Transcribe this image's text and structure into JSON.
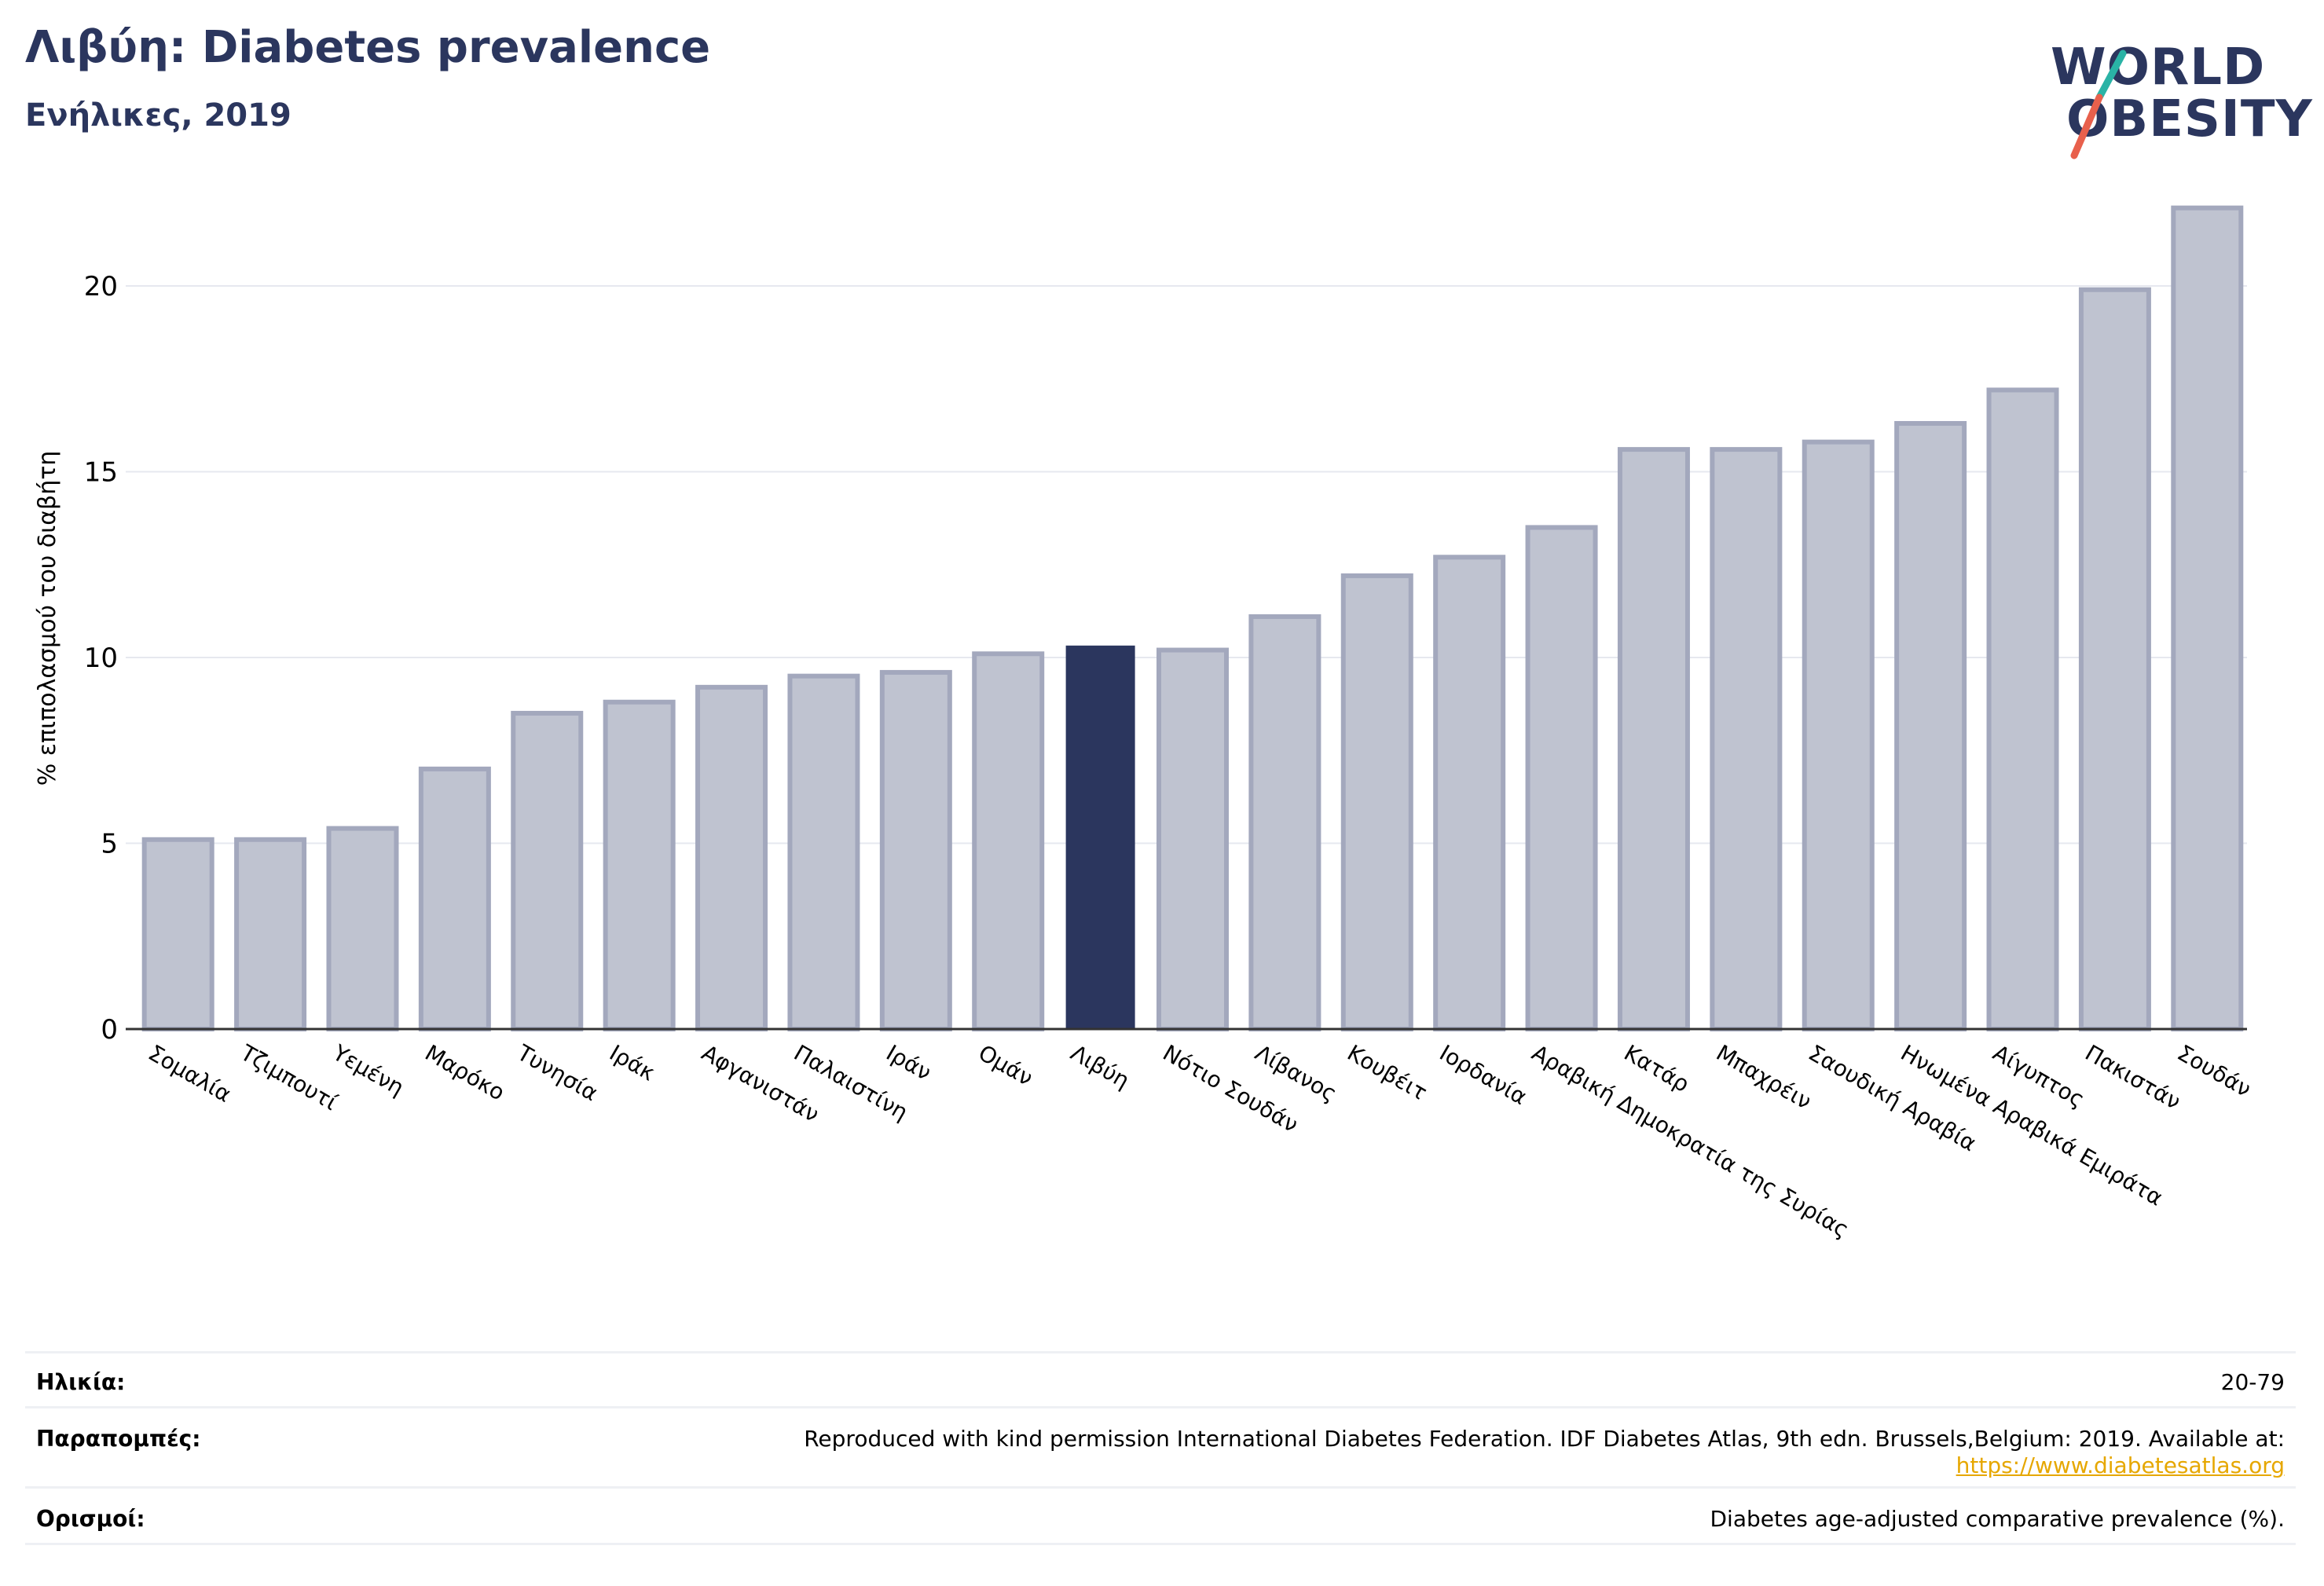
{
  "header": {
    "title": "Λιβύη: Diabetes prevalence",
    "subtitle": "Ενήλικες, 2019"
  },
  "logo": {
    "line1": "WORLD",
    "line2": "OBESITY",
    "brand_color": "#2b365e",
    "accent_colors": [
      "#2ab3a6",
      "#e8604c"
    ]
  },
  "chart_data": {
    "type": "bar",
    "title": "Λιβύη: Diabetes prevalence",
    "subtitle": "Ενήλικες, 2019",
    "xlabel": "",
    "ylabel": "% επιπολασμού του διαβήτη",
    "ylim": [
      0,
      22.5
    ],
    "yticks": [
      0,
      5,
      10,
      15,
      20
    ],
    "grid": true,
    "highlight": "Λιβύη",
    "colors": {
      "bar": "#bfc3d0",
      "bar_edge": "#a3a8bd",
      "highlight": "#2b365e",
      "grid": "#e6e8ef",
      "axis": "#333333"
    },
    "categories": [
      "Σομαλία",
      "Τζιμπουτί",
      "Υεμένη",
      "Μαρόκο",
      "Τυνησία",
      "Ιράκ",
      "Αφγανιστάν",
      "Παλαιστίνη",
      "Ιράν",
      "Ομάν",
      "Λιβύη",
      "Νότιο Σουδάν",
      "Λίβανος",
      "Κουβέιτ",
      "Ιορδανία",
      "Αραβική Δημοκρατία της Συρίας",
      "Κατάρ",
      "Μπαχρέιν",
      "Σαουδική Αραβία",
      "Ηνωμένα Αραβικά Εμιράτα",
      "Αίγυπτος",
      "Πακιστάν",
      "Σουδάν"
    ],
    "values": [
      5.1,
      5.1,
      5.4,
      7.0,
      8.5,
      8.8,
      9.2,
      9.5,
      9.6,
      10.1,
      10.3,
      10.2,
      11.1,
      12.2,
      12.7,
      13.5,
      15.6,
      15.6,
      15.8,
      16.3,
      17.2,
      19.9,
      22.1
    ]
  },
  "footer": {
    "rows": [
      {
        "label": "Ηλικία:",
        "value": "20-79",
        "link": ""
      },
      {
        "label": "Παραπομπές:",
        "value": "Reproduced with kind permission International Diabetes Federation. IDF Diabetes Atlas, 9th edn. Brussels,Belgium: 2019. Available at:",
        "link": "https://www.diabetesatlas.org"
      },
      {
        "label": "Ορισμοί:",
        "value": "Diabetes age-adjusted comparative prevalence (%).",
        "link": ""
      }
    ]
  }
}
